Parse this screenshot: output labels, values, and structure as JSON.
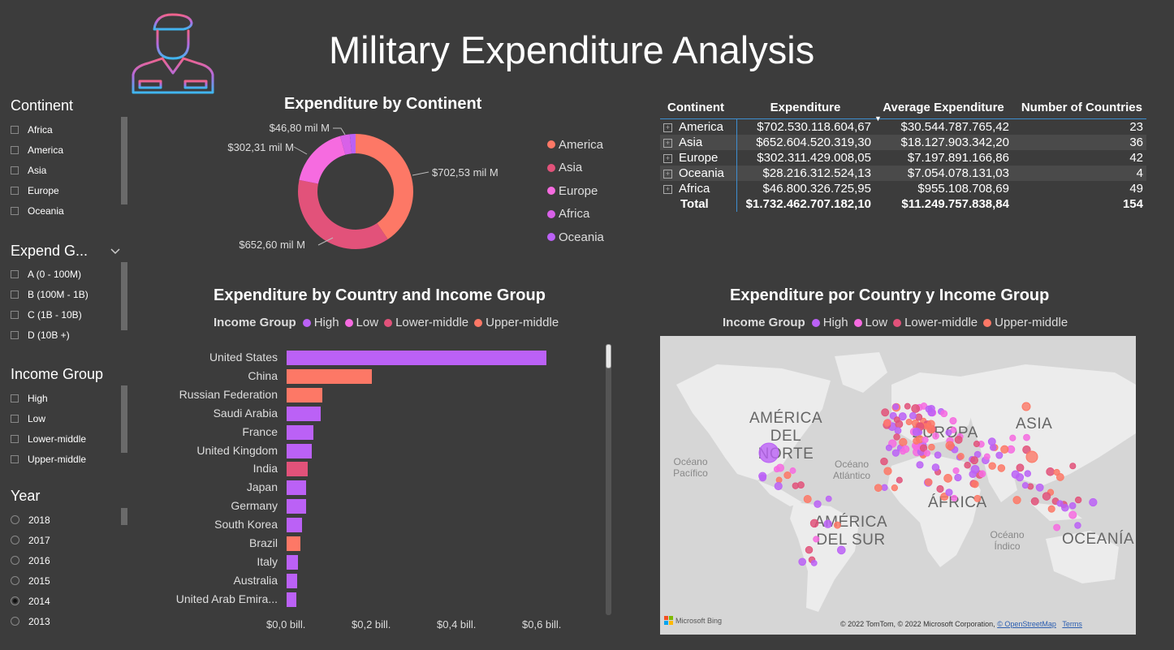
{
  "title": "Military Expenditure Analysis",
  "logo": "soldier-icon",
  "slicers": {
    "continent": {
      "title": "Continent",
      "items": [
        "Africa",
        "America",
        "Asia",
        "Europe",
        "Oceania"
      ]
    },
    "expend_group": {
      "title": "Expend G...",
      "items": [
        "A (0 - 100M)",
        "B (100M - 1B)",
        "C (1B - 10B)",
        "D (10B +)"
      ]
    },
    "income_group": {
      "title": "Income Group",
      "items": [
        "High",
        "Low",
        "Lower-middle",
        "Upper-middle"
      ]
    },
    "year": {
      "title": "Year",
      "items": [
        "2018",
        "2017",
        "2016",
        "2015",
        "2014",
        "2013"
      ],
      "selected": "2014"
    }
  },
  "colors": {
    "America": "#fd7866",
    "Asia": "#e2527a",
    "Europe": "#f66be0",
    "Africa": "#d861e8",
    "Oceania": "#bb61f6",
    "High": "#bb61f6",
    "Low": "#f66be0",
    "Lower-middle": "#e2527a",
    "Upper-middle": "#fd7866"
  },
  "donut": {
    "title": "Expenditure by Continent",
    "legend": [
      "America",
      "Asia",
      "Europe",
      "Africa",
      "Oceania"
    ],
    "labels": {
      "America": "$702,53 mil M",
      "Asia": "$652,60 mil M",
      "Europe": "$302,31 mil M",
      "Africa": "$46,80 mil M"
    }
  },
  "table": {
    "headers": [
      "Continent",
      "Expenditure",
      "Average Expenditure",
      "Number of Countries"
    ],
    "rows": [
      [
        "America",
        "$702.530.118.604,67",
        "$30.544.787.765,42",
        "23"
      ],
      [
        "Asia",
        "$652.604.520.319,30",
        "$18.127.903.342,20",
        "36"
      ],
      [
        "Europe",
        "$302.311.429.008,05",
        "$7.197.891.166,86",
        "42"
      ],
      [
        "Oceania",
        "$28.216.312.524,13",
        "$7.054.078.131,03",
        "4"
      ],
      [
        "Africa",
        "$46.800.326.725,95",
        "$955.108.708,69",
        "49"
      ]
    ],
    "total": [
      "Total",
      "$1.732.462.707.182,10",
      "$11.249.757.838,84",
      "154"
    ]
  },
  "bar_section": {
    "title": "Expenditure by Country and Income Group",
    "legend_title": "Income Group",
    "legend": [
      "High",
      "Low",
      "Lower-middle",
      "Upper-middle"
    ]
  },
  "map_section": {
    "title": "Expenditure por Country y Income Group",
    "legend_title": "Income Group",
    "legend": [
      "High",
      "Low",
      "Lower-middle",
      "Upper-middle"
    ],
    "labels": {
      "na": "AMÉRICA DEL NORTE",
      "sa": "AMÉRICA DEL SUR",
      "asia": "ASIA",
      "europe": "EUROPA",
      "africa": "ÁFRICA",
      "oceania": "OCEANÍA"
    },
    "oceans": {
      "pac": "Océano Pacífico",
      "atl": "Océano Atlántico",
      "ind": "Océano Índico"
    },
    "attribution": "© 2022 TomTom, © 2022 Microsoft Corporation,",
    "osm": "© OpenStreetMap",
    "terms": "Terms",
    "bing": "Microsoft Bing"
  },
  "chart_data": [
    {
      "type": "pie",
      "title": "Expenditure by Continent",
      "categories": [
        "America",
        "Asia",
        "Europe",
        "Africa",
        "Oceania"
      ],
      "values": [
        702.53,
        652.6,
        302.31,
        46.8,
        28.22
      ],
      "unit": "mil M"
    },
    {
      "type": "bar",
      "orientation": "horizontal",
      "title": "Expenditure by Country and Income Group",
      "categories": [
        "United States",
        "China",
        "Russian Federation",
        "Saudi Arabia",
        "France",
        "United Kingdom",
        "India",
        "Japan",
        "Germany",
        "South Korea",
        "Brazil",
        "Italy",
        "Australia",
        "United Arab Emira..."
      ],
      "values": [
        0.61,
        0.2,
        0.084,
        0.08,
        0.063,
        0.059,
        0.05,
        0.046,
        0.046,
        0.036,
        0.033,
        0.027,
        0.025,
        0.022
      ],
      "income_group": [
        "High",
        "Upper-middle",
        "Upper-middle",
        "High",
        "High",
        "High",
        "Lower-middle",
        "High",
        "High",
        "High",
        "Upper-middle",
        "High",
        "High",
        "High"
      ],
      "x_ticks": [
        "$0,0 bill.",
        "$0,2 bill.",
        "$0,4 bill.",
        "$0,6 bill."
      ],
      "xlim": [
        0,
        0.68
      ]
    }
  ]
}
